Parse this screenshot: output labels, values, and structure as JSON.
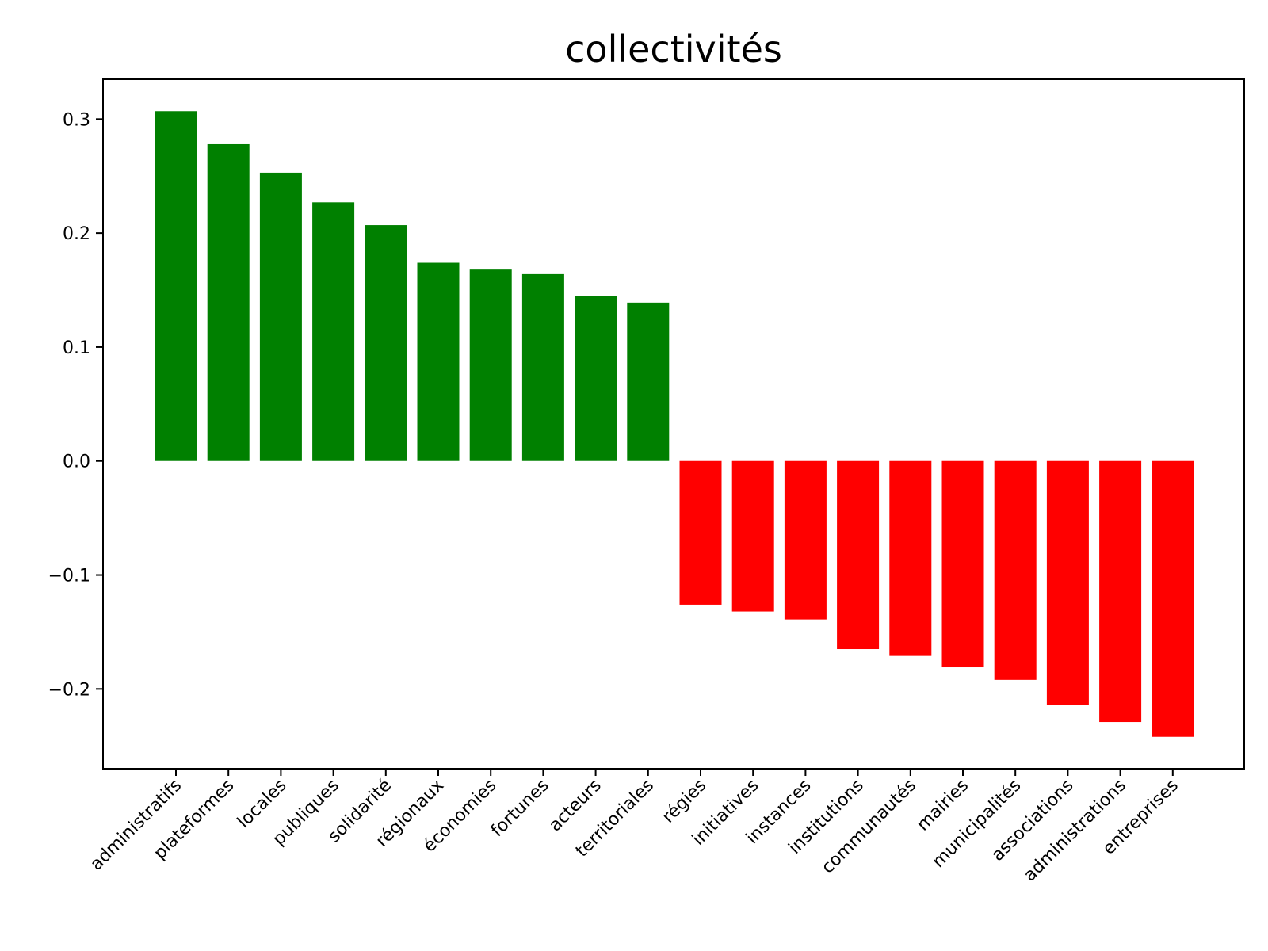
{
  "chart_data": {
    "type": "bar",
    "title": "collectivités",
    "xlabel": "",
    "ylabel": "",
    "ylim": [
      -0.27,
      0.335
    ],
    "yticks": [
      -0.2,
      -0.1,
      0.0,
      0.1,
      0.2,
      0.3
    ],
    "ytick_labels": [
      "−0.2",
      "−0.1",
      "0.0",
      "0.1",
      "0.2",
      "0.3"
    ],
    "grid": false,
    "colors": {
      "positive": "#008000",
      "negative": "#ff0000",
      "axis": "#000000"
    },
    "categories": [
      "administratifs",
      "plateformes",
      "locales",
      "publiques",
      "solidarité",
      "régionaux",
      "économies",
      "fortunes",
      "acteurs",
      "territoriales",
      "régies",
      "initiatives",
      "instances",
      "institutions",
      "communautés",
      "mairies",
      "municipalités",
      "associations",
      "administrations",
      "entreprises"
    ],
    "values": [
      0.307,
      0.278,
      0.253,
      0.227,
      0.207,
      0.174,
      0.168,
      0.164,
      0.145,
      0.139,
      -0.126,
      -0.132,
      -0.139,
      -0.165,
      -0.171,
      -0.181,
      -0.192,
      -0.214,
      -0.229,
      -0.242
    ]
  }
}
